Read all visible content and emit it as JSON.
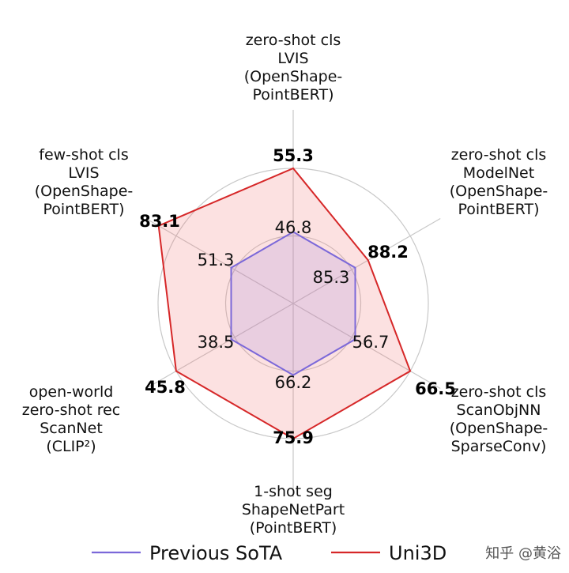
{
  "chart_data": {
    "type": "radar",
    "axes": [
      [
        "zero-shot cls",
        "LVIS",
        "(OpenShape-",
        "PointBERT)"
      ],
      [
        "zero-shot cls",
        "ModelNet",
        "(OpenShape-",
        "PointBERT)"
      ],
      [
        "zero-shot cls",
        "ScanObjNN",
        "(OpenShape-",
        "SparseConv)"
      ],
      [
        "1-shot seg",
        "ShapeNetPart",
        "(PointBERT)"
      ],
      [
        "open-world",
        "zero-shot rec",
        "ScanNet",
        "(CLIP²)"
      ],
      [
        "few-shot cls",
        "LVIS",
        "(OpenShape-",
        "PointBERT)"
      ]
    ],
    "series": [
      {
        "name": "Previous SoTA",
        "values": [
          "46.8",
          "85.3",
          "56.7",
          "66.2",
          "38.5",
          "51.3"
        ],
        "color": "#7b68d9"
      },
      {
        "name": "Uni3D",
        "values": [
          "55.3",
          "88.2",
          "66.5",
          "75.9",
          "45.8",
          "83.1"
        ],
        "color": "#d62728"
      }
    ],
    "normalized_levels": {
      "Previous SoTA": [
        0.53,
        0.53,
        0.53,
        0.53,
        0.53,
        0.53
      ],
      "Uni3D": [
        1.0,
        0.64,
        1.0,
        1.0,
        1.0,
        1.15
      ]
    },
    "grid_rings": 2,
    "legend_position": "bottom"
  },
  "watermark": "知乎 @黄浴"
}
